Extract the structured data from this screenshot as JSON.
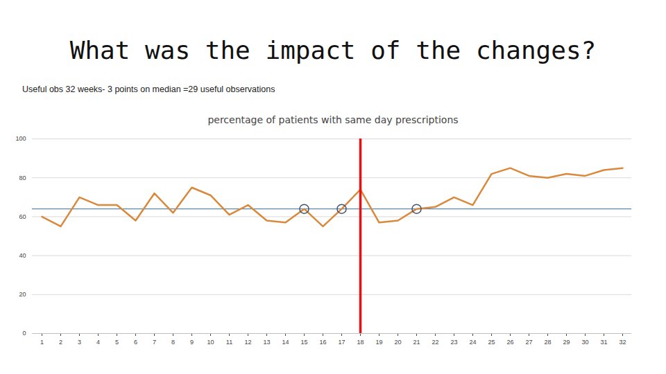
{
  "slide": {
    "title": "What was the impact of the changes?",
    "subtitle": "Useful obs 32 weeks- 3 points on median =29 useful observations"
  },
  "chart_data": {
    "type": "line",
    "title": "percentage of patients with same day prescriptions",
    "categories": [
      1,
      2,
      3,
      4,
      5,
      6,
      7,
      8,
      9,
      10,
      11,
      12,
      13,
      14,
      15,
      16,
      17,
      18,
      19,
      20,
      21,
      22,
      23,
      24,
      25,
      26,
      27,
      28,
      29,
      30,
      31,
      32
    ],
    "values": [
      60,
      55,
      70,
      66,
      66,
      58,
      72,
      62,
      75,
      71,
      61,
      66,
      58,
      57,
      64,
      55,
      64,
      74,
      57,
      58,
      64,
      65,
      70,
      66,
      82,
      85,
      81,
      80,
      82,
      81,
      84,
      85
    ],
    "color": "#d9893c",
    "ylim": [
      0,
      100
    ],
    "yticks": [
      0,
      20,
      40,
      60,
      80,
      100
    ],
    "grid": true,
    "median": 64,
    "intervention_x": 18,
    "points_on_median": [
      15,
      17,
      21
    ]
  }
}
